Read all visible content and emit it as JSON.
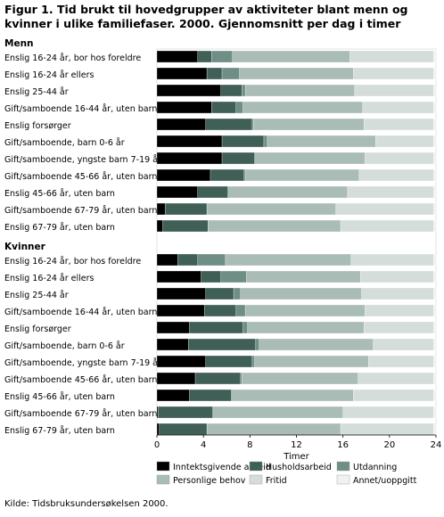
{
  "title": "Figur 1. Tid brukt til hovedgrupper av aktiviteter blant menn og kvinner i ulike familiefaser. 2000. Gjennomsnitt per dag i timer",
  "source": "Kilde: Tidsbruksundersøkelsen 2000.",
  "chart_data": {
    "type": "bar",
    "orientation": "horizontal",
    "stacked": true,
    "xlabel": "Timer",
    "xlim": [
      0,
      24
    ],
    "xticks": [
      0,
      4,
      8,
      12,
      16,
      20,
      24
    ],
    "grid": false,
    "legend_position": "bottom",
    "series": [
      {
        "name": "Inntektsgivende arbeid",
        "color": "#000000"
      },
      {
        "name": "Husholdsarbeid",
        "color": "#3f5f57"
      },
      {
        "name": "Utdanning",
        "color": "#6f8f86"
      },
      {
        "name": "Personlige behov",
        "color": "#aabcb6"
      },
      {
        "name": "Fritid",
        "color": "#d4ddda"
      },
      {
        "name": "Annet/uoppgitt",
        "color": "#eef2f0"
      }
    ],
    "groups": [
      {
        "label": "Menn",
        "rows": [
          {
            "category": "Enslig 16-24 år, bor hos foreldre",
            "values": [
              3.5,
              1.2,
              1.8,
              10.1,
              7.2,
              0.2
            ]
          },
          {
            "category": "Enslig 16-24 år ellers",
            "values": [
              4.3,
              1.3,
              1.5,
              9.8,
              6.9,
              0.2
            ]
          },
          {
            "category": "Enslig 25-44 år",
            "values": [
              5.5,
              1.8,
              0.3,
              9.4,
              6.8,
              0.2
            ]
          },
          {
            "category": "Gift/samboende 16-44 år, uten barn",
            "values": [
              4.7,
              2.1,
              0.6,
              10.3,
              6.1,
              0.2
            ]
          },
          {
            "category": "Enslig forsørger",
            "values": [
              4.2,
              4.0,
              0.1,
              9.5,
              6.0,
              0.2
            ]
          },
          {
            "category": "Gift/samboende, barn 0-6 år",
            "values": [
              5.6,
              3.6,
              0.3,
              9.3,
              5.0,
              0.2
            ]
          },
          {
            "category": "Gift/samboende, yngste barn 7-19 år",
            "values": [
              5.6,
              2.8,
              0.1,
              9.4,
              5.9,
              0.2
            ]
          },
          {
            "category": "Gift/samboende 45-66 år, uten barn",
            "values": [
              4.6,
              2.9,
              0.1,
              9.8,
              6.4,
              0.2
            ]
          },
          {
            "category": "Enslig 45-66 år, uten barn",
            "values": [
              3.5,
              2.6,
              0.1,
              10.2,
              7.4,
              0.2
            ]
          },
          {
            "category": "Gift/samboende 67-79 år, uten barn",
            "values": [
              0.7,
              3.6,
              0.0,
              11.1,
              8.4,
              0.2
            ]
          },
          {
            "category": "Enslig 67-79 år, uten barn",
            "values": [
              0.5,
              3.9,
              0.0,
              11.4,
              8.0,
              0.2
            ]
          }
        ]
      },
      {
        "label": "Kvinner",
        "rows": [
          {
            "category": "Enslig 16-24 år, bor hos foreldre",
            "values": [
              1.8,
              1.7,
              2.4,
              10.8,
              7.1,
              0.2
            ]
          },
          {
            "category": "Enslig 16-24 år ellers",
            "values": [
              3.8,
              1.7,
              2.2,
              9.8,
              6.3,
              0.2
            ]
          },
          {
            "category": "Enslig 25-44 år",
            "values": [
              4.2,
              2.4,
              0.6,
              10.4,
              6.2,
              0.2
            ]
          },
          {
            "category": "Gift/samboende 16-44 år, uten barn",
            "values": [
              4.1,
              2.7,
              0.8,
              10.3,
              5.9,
              0.2
            ]
          },
          {
            "category": "Enslig forsørger",
            "values": [
              2.8,
              4.6,
              0.4,
              10.0,
              6.0,
              0.2
            ]
          },
          {
            "category": "Gift/samboende, barn 0-6 år",
            "values": [
              2.7,
              5.8,
              0.3,
              9.8,
              5.2,
              0.2
            ]
          },
          {
            "category": "Gift/samboende, yngste barn 7-19 år",
            "values": [
              4.2,
              4.0,
              0.2,
              9.8,
              5.6,
              0.2
            ]
          },
          {
            "category": "Gift/samboende 45-66 år, uten barn",
            "values": [
              3.3,
              3.9,
              0.1,
              10.0,
              6.5,
              0.2
            ]
          },
          {
            "category": "Enslig 45-66 år, uten barn",
            "values": [
              2.8,
              3.6,
              0.1,
              10.4,
              6.9,
              0.2
            ]
          },
          {
            "category": "Gift/samboende 67-79 år, uten barn",
            "values": [
              0.1,
              4.7,
              0.0,
              11.2,
              7.8,
              0.2
            ]
          },
          {
            "category": "Enslig 67-79 år, uten barn",
            "values": [
              0.2,
              4.1,
              0.0,
              11.5,
              8.0,
              0.2
            ]
          }
        ]
      }
    ]
  }
}
